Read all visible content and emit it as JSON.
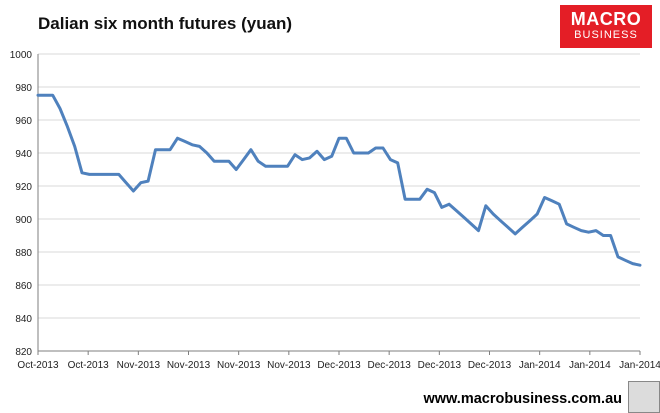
{
  "header": {
    "title": "Dalian six month futures (yuan)",
    "brand_line1": "MACRO",
    "brand_line2": "BUSINESS",
    "brand_color": "#e41e26"
  },
  "footer": {
    "website": "www.macrobusiness.com.au"
  },
  "chart_data": {
    "type": "line",
    "title": "Dalian six month futures (yuan)",
    "xlabel": "",
    "ylabel": "",
    "ylim": [
      820,
      1000
    ],
    "yticks": [
      820,
      840,
      860,
      880,
      900,
      920,
      940,
      960,
      980,
      1000
    ],
    "grid": true,
    "legend": "none",
    "line_color": "#4f81bd",
    "x_tick_labels": [
      "Oct-2013",
      "Oct-2013",
      "Nov-2013",
      "Nov-2013",
      "Nov-2013",
      "Nov-2013",
      "Dec-2013",
      "Dec-2013",
      "Dec-2013",
      "Dec-2013",
      "Jan-2014",
      "Jan-2014",
      "Jan-2014"
    ],
    "series": [
      {
        "values": [
          975,
          975,
          975,
          967,
          956,
          944,
          928,
          927,
          927,
          927,
          927,
          927,
          922,
          917,
          922,
          923,
          942,
          942,
          942,
          949,
          947,
          945,
          944,
          940,
          935,
          935,
          935,
          930,
          936,
          942,
          935,
          932,
          932,
          932,
          932,
          939,
          936,
          937,
          941,
          936,
          938,
          949,
          949,
          940,
          940,
          940,
          943,
          943,
          936,
          934,
          912,
          912,
          912,
          918,
          916,
          907,
          909,
          905,
          901,
          897,
          893,
          908,
          903,
          899,
          895,
          891,
          895,
          899,
          903,
          913,
          911,
          909,
          897,
          895,
          893,
          892,
          893,
          890,
          890,
          877,
          875,
          873,
          872
        ]
      }
    ]
  }
}
